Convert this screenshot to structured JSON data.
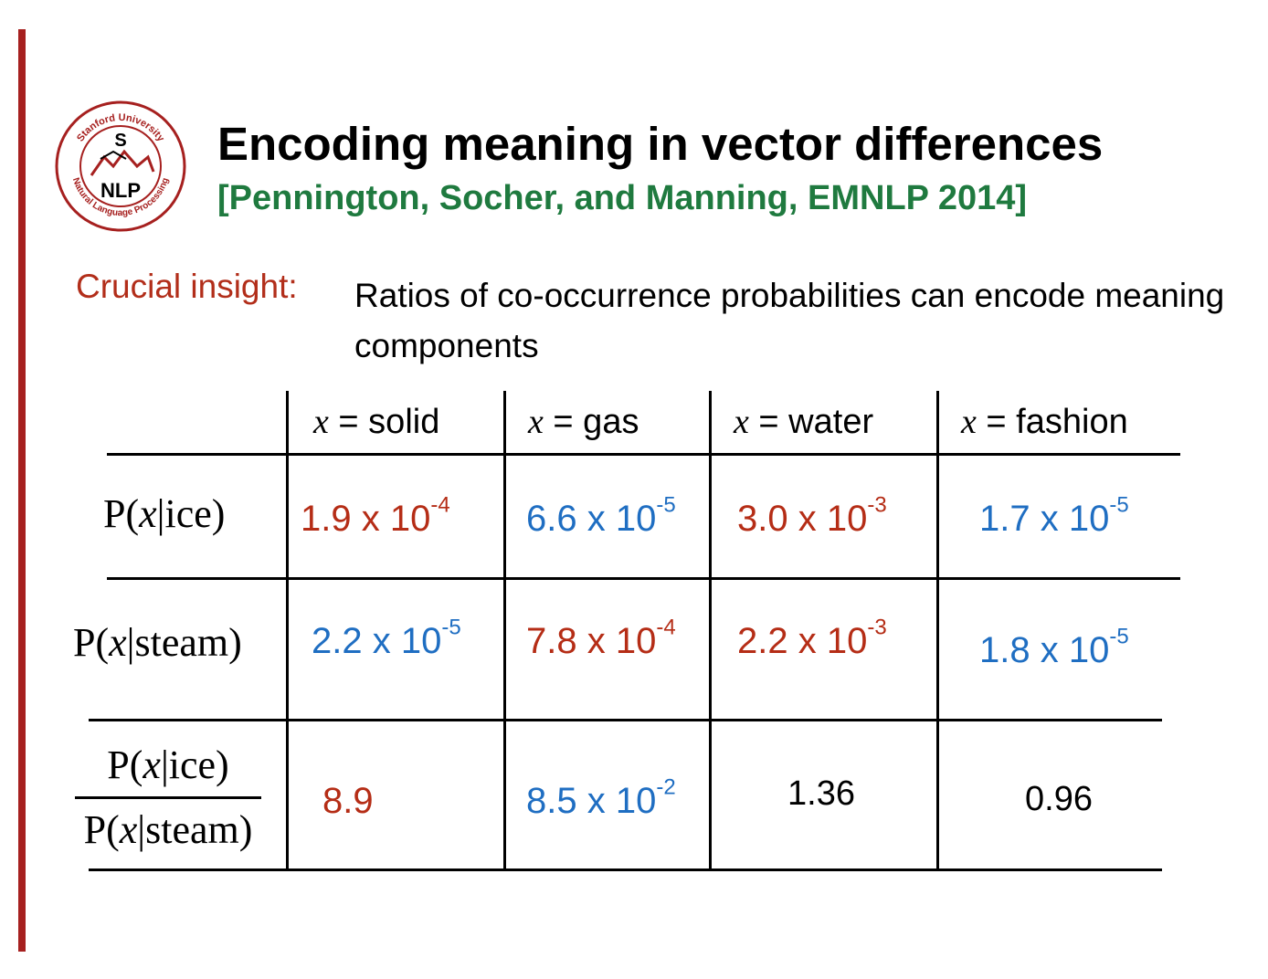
{
  "slide": {
    "title": "Encoding meaning in vector differences",
    "citation": "[Pennington, Socher, and Manning, EMNLP 2014]",
    "insight_label": "Crucial insight:",
    "insight_text": "Ratios of co-occurrence probabilities can encode meaning components",
    "logo": {
      "top_text": "Stanford University",
      "bottom_text": "Natural Language Processing",
      "letter": "S",
      "initials": "NLP",
      "color": "#a6201f"
    },
    "accent_color": "#a6201f"
  },
  "table": {
    "columns": [
      {
        "var": "x",
        "text": " = solid"
      },
      {
        "var": "x",
        "text": " = gas"
      },
      {
        "var": "x",
        "text": " = water"
      },
      {
        "var": "x",
        "text": " = fashion"
      }
    ],
    "rows": [
      {
        "label": {
          "open": "P(",
          "var": "x",
          "rest": "|ice)"
        },
        "cells": [
          {
            "base": "1.9 x 10",
            "exp": "-4",
            "color": "red"
          },
          {
            "base": "6.6 x 10",
            "exp": "-5",
            "color": "blue"
          },
          {
            "base": "3.0 x 10",
            "exp": "-3",
            "color": "red"
          },
          {
            "base": "1.7 x 10",
            "exp": "-5",
            "color": "blue"
          }
        ]
      },
      {
        "label": {
          "open": "P(",
          "var": "x",
          "rest": "|steam)"
        },
        "cells": [
          {
            "base": "2.2 x 10",
            "exp": "-5",
            "color": "blue"
          },
          {
            "base": "7.8 x 10",
            "exp": "-4",
            "color": "red"
          },
          {
            "base": "2.2 x 10",
            "exp": "-3",
            "color": "red"
          },
          {
            "base": "1.8 x 10",
            "exp": "-5",
            "color": "blue"
          }
        ]
      },
      {
        "label": {
          "numerator": {
            "open": "P(",
            "var": "x",
            "rest": "|ice)"
          },
          "denominator": {
            "open": "P(",
            "var": "x",
            "rest": "|steam)"
          }
        },
        "cells": [
          {
            "base": "8.9",
            "exp": "",
            "color": "red"
          },
          {
            "base": "8.5 x 10",
            "exp": "-2",
            "color": "blue"
          },
          {
            "base": "1.36",
            "exp": "",
            "color": "black"
          },
          {
            "base": "0.96",
            "exp": "",
            "color": "black"
          }
        ]
      }
    ],
    "colors": {
      "red": "#b52d16",
      "blue": "#1f6ec2",
      "black": "#000000"
    }
  }
}
